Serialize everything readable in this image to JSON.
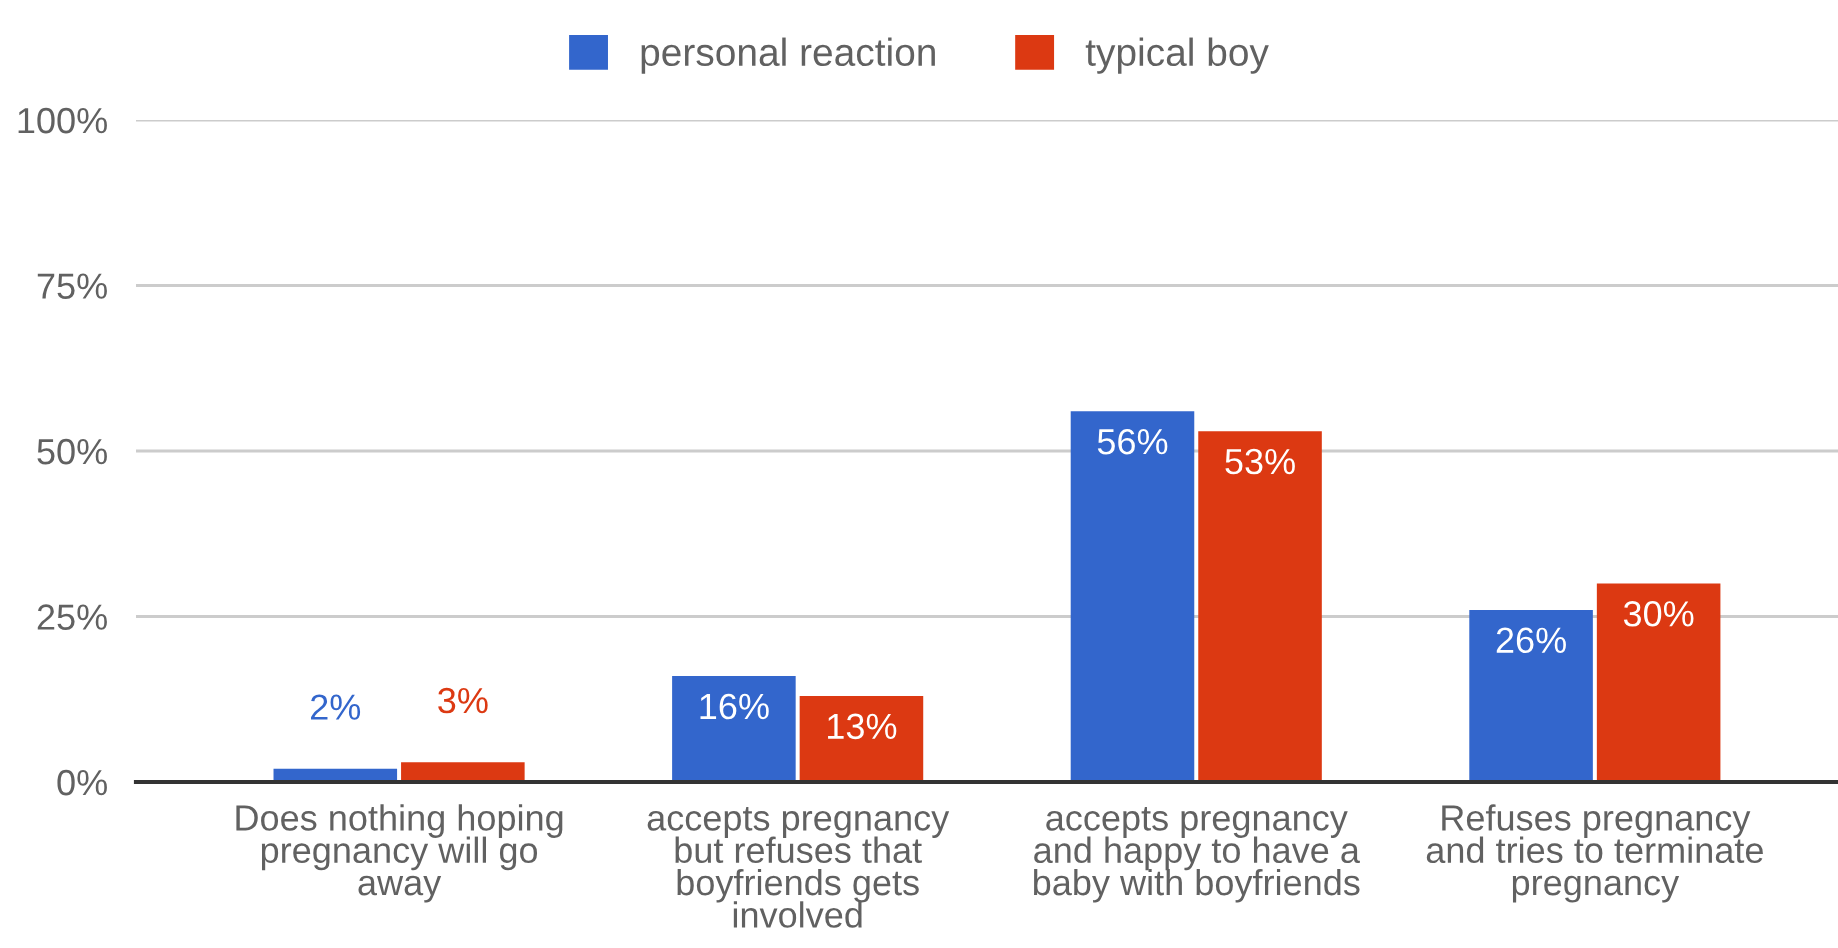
{
  "chart_data": {
    "type": "bar",
    "categories": [
      "Does nothing hoping\npregnancy will go\naway",
      "accepts pregnancy\nbut refuses that\nboyfriends gets\ninvolved",
      "accepts pregnancy\nand happy to have a\nbaby with boyfriends",
      "Refuses pregnancy\nand tries to terminate\npregnancy"
    ],
    "series": [
      {
        "name": "personal reaction",
        "color": "#3366cc",
        "values": [
          2,
          16,
          56,
          26
        ],
        "value_labels": [
          "2%",
          "16%",
          "56%",
          "26%"
        ]
      },
      {
        "name": "typical boy",
        "color": "#dc3912",
        "values": [
          3,
          13,
          53,
          30
        ],
        "value_labels": [
          "3%",
          "13%",
          "53%",
          "30%"
        ]
      }
    ],
    "ylim": [
      0,
      100
    ],
    "yticks": [
      {
        "value": 0,
        "label": "0%"
      },
      {
        "value": 25,
        "label": "25%"
      },
      {
        "value": 50,
        "label": "50%"
      },
      {
        "value": 75,
        "label": "75%"
      },
      {
        "value": 100,
        "label": "100%"
      }
    ],
    "grid": "y",
    "legend": "top"
  }
}
